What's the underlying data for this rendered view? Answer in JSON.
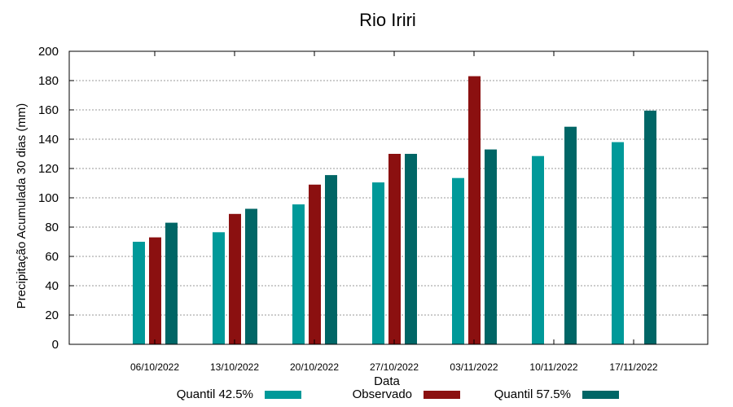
{
  "chart_data": {
    "type": "bar",
    "title": "Rio Iriri",
    "xlabel": "Data",
    "ylabel": "Precipitação Acumulada 30 dias (mm)",
    "ylim": [
      0,
      200
    ],
    "yticks": [
      0,
      20,
      40,
      60,
      80,
      100,
      120,
      140,
      160,
      180,
      200
    ],
    "grid": true,
    "legend_position": "bottom",
    "categories": [
      "06/10/2022",
      "13/10/2022",
      "20/10/2022",
      "27/10/2022",
      "03/11/2022",
      "10/11/2022",
      "17/11/2022"
    ],
    "series": [
      {
        "name": "Quantil 42.5%",
        "color": "#009999",
        "values": [
          70,
          76.5,
          95.5,
          110.5,
          113.5,
          128.5,
          138
        ]
      },
      {
        "name": "Observado",
        "color": "#8b1010",
        "values": [
          73,
          89,
          109,
          130,
          183,
          null,
          null
        ]
      },
      {
        "name": "Quantil 57.5%",
        "color": "#006666",
        "values": [
          83,
          92.5,
          115.5,
          130,
          133,
          148.5,
          159.5
        ]
      }
    ]
  }
}
